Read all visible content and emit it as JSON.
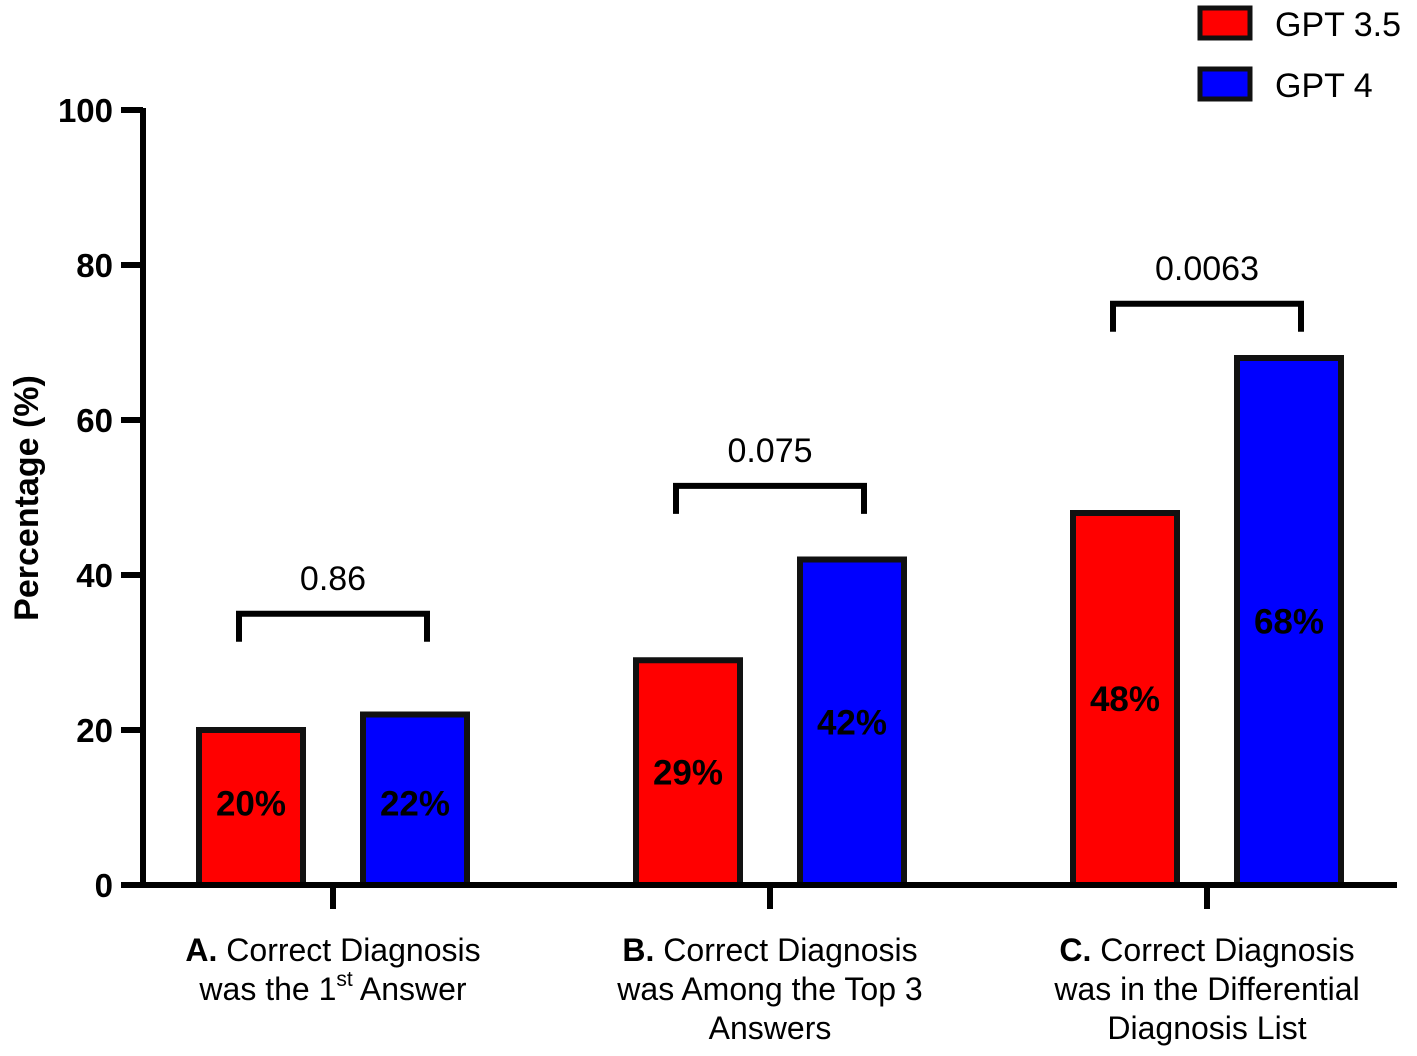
{
  "chart_data": {
    "type": "bar",
    "title": "",
    "xlabel": "",
    "ylabel": "Percentage (%)",
    "ylim": [
      0,
      100
    ],
    "yticks": [
      0,
      20,
      40,
      60,
      80,
      100
    ],
    "grid": false,
    "legend_position": "top-right",
    "categories": [
      {
        "letter": "A.",
        "lines": [
          "Correct Diagnosis",
          "was the 1",
          "st",
          " Answer"
        ]
      },
      {
        "letter": "B.",
        "lines": [
          "Correct Diagnosis",
          "was Among the Top 3",
          "Answers"
        ]
      },
      {
        "letter": "C.",
        "lines": [
          "Correct Diagnosis",
          "was in the Differential",
          "Diagnosis List"
        ]
      }
    ],
    "series": [
      {
        "name": "GPT 3.5",
        "color": "#ff0000",
        "values": [
          20,
          29,
          48
        ],
        "labels": [
          "20%",
          "29%",
          "48%"
        ]
      },
      {
        "name": "GPT 4",
        "color": "#0000ff",
        "values": [
          22,
          42,
          68
        ],
        "labels": [
          "22%",
          "42%",
          "68%"
        ]
      }
    ],
    "annotations": [
      {
        "category": 0,
        "text": "0.86",
        "bracket_y": 35
      },
      {
        "category": 1,
        "text": "0.075",
        "bracket_y": 51.5
      },
      {
        "category": 2,
        "text": "0.0063",
        "bracket_y": 75
      }
    ]
  }
}
